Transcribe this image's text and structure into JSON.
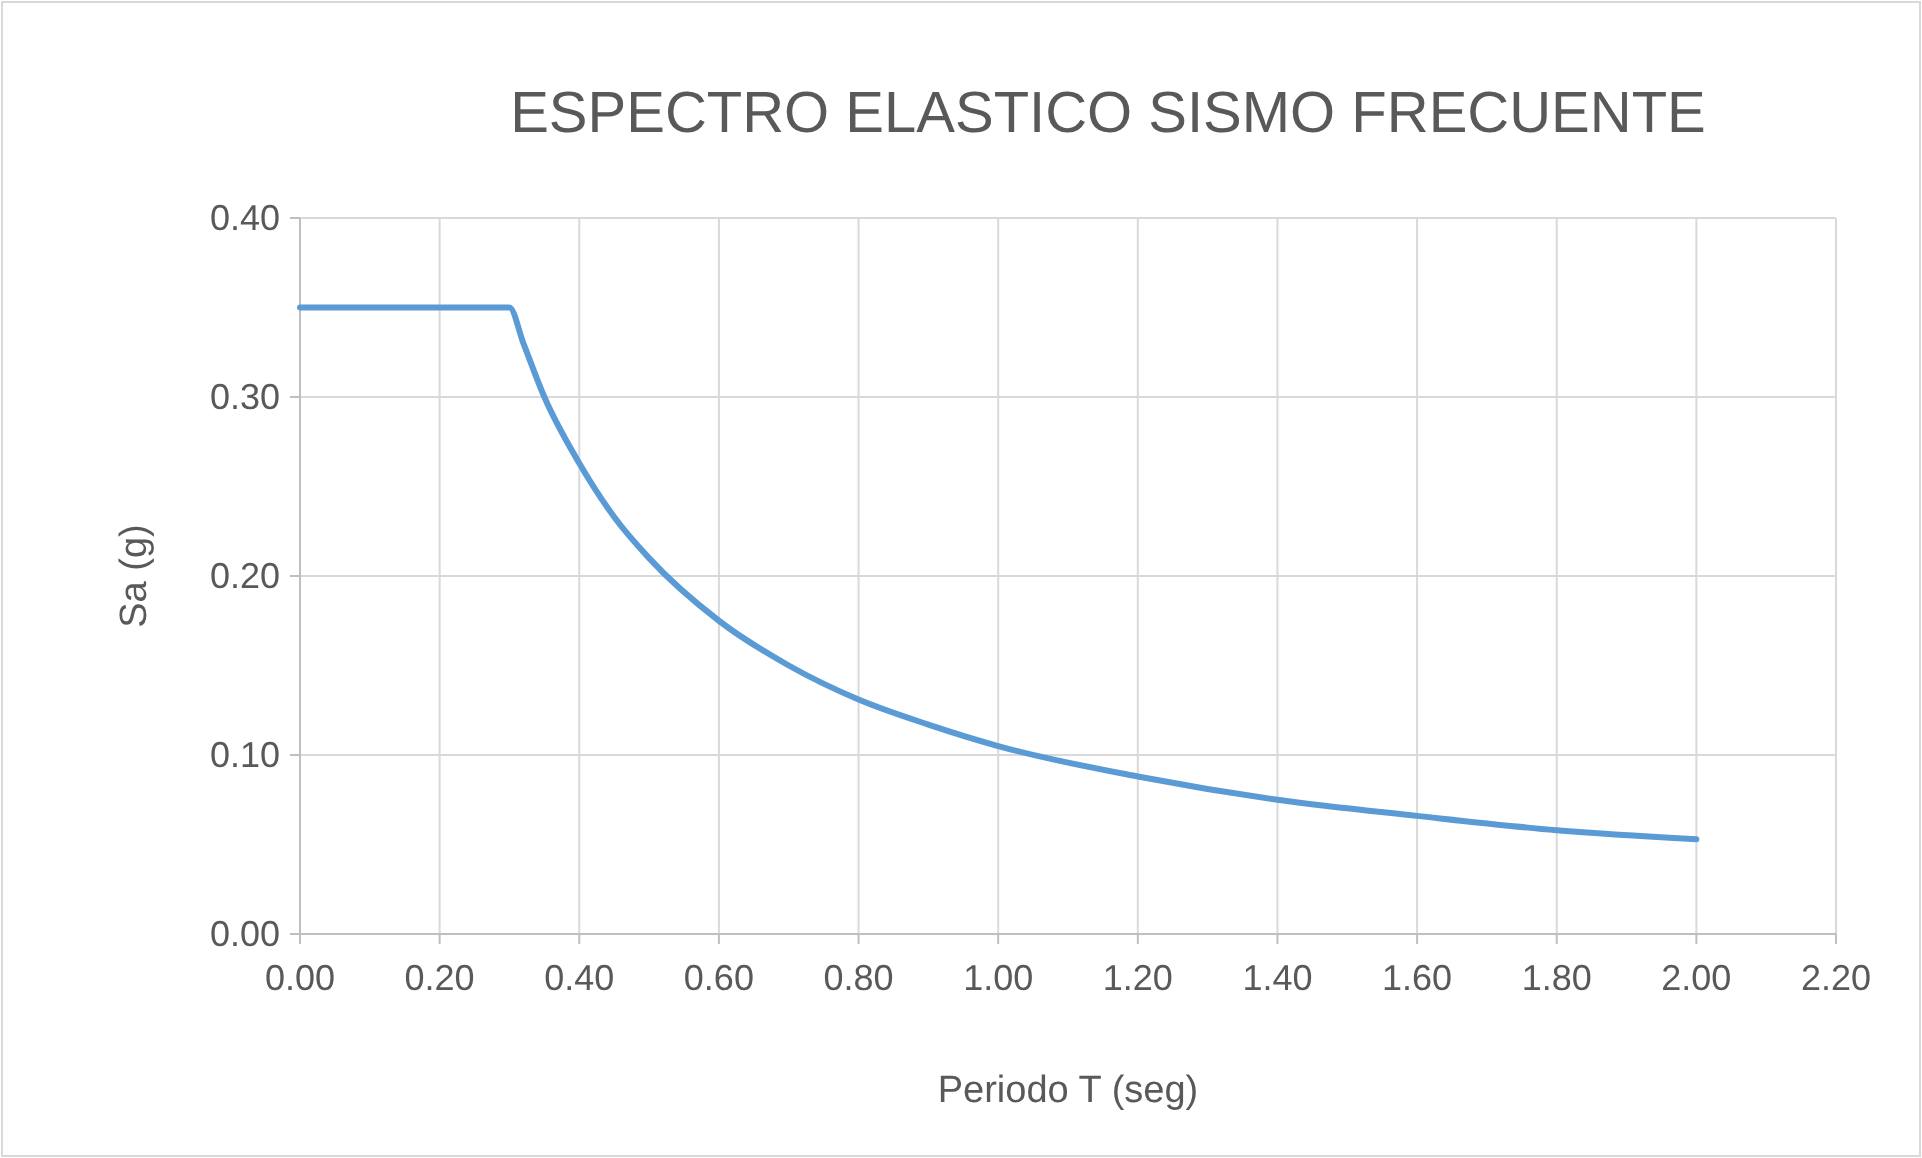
{
  "chart_data": {
    "type": "line",
    "title": "ESPECTRO ELASTICO SISMO FRECUENTE",
    "xlabel": "Periodo T (seg)",
    "ylabel": "Sa (g)",
    "x": [
      0,
      0.3,
      0.32,
      0.35,
      0.4,
      0.45,
      0.5,
      0.6,
      0.7,
      0.8,
      0.9,
      1.0,
      1.2,
      1.4,
      1.6,
      1.8,
      2.0
    ],
    "series": [
      {
        "color": "#5b9bd5",
        "values": [
          0.35,
          0.35,
          0.33,
          0.3,
          0.263,
          0.233,
          0.21,
          0.175,
          0.15,
          0.131,
          0.117,
          0.105,
          0.088,
          0.075,
          0.066,
          0.058,
          0.053
        ]
      }
    ],
    "xlim": [
      0,
      2.2
    ],
    "xticks": [
      {
        "value": 0,
        "label": "0.00"
      },
      {
        "value": 0.2,
        "label": "0.20"
      },
      {
        "value": 0.4,
        "label": "0.40"
      },
      {
        "value": 0.6,
        "label": "0.60"
      },
      {
        "value": 0.8,
        "label": "0.80"
      },
      {
        "value": 1,
        "label": "1.00"
      },
      {
        "value": 1.2,
        "label": "1.20"
      },
      {
        "value": 1.4,
        "label": "1.40"
      },
      {
        "value": 1.6,
        "label": "1.60"
      },
      {
        "value": 1.8,
        "label": "1.80"
      },
      {
        "value": 2,
        "label": "2.00"
      },
      {
        "value": 2.2,
        "label": "2.20"
      }
    ],
    "ylim": [
      0,
      0.4
    ],
    "yticks": [
      {
        "value": 0,
        "label": "0.00"
      },
      {
        "value": 0.1,
        "label": "0.10"
      },
      {
        "value": 0.2,
        "label": "0.20"
      },
      {
        "value": 0.3,
        "label": "0.30"
      },
      {
        "value": 0.4,
        "label": "0.40"
      }
    ],
    "grid": true,
    "marker": "none",
    "line_style": "solid"
  }
}
